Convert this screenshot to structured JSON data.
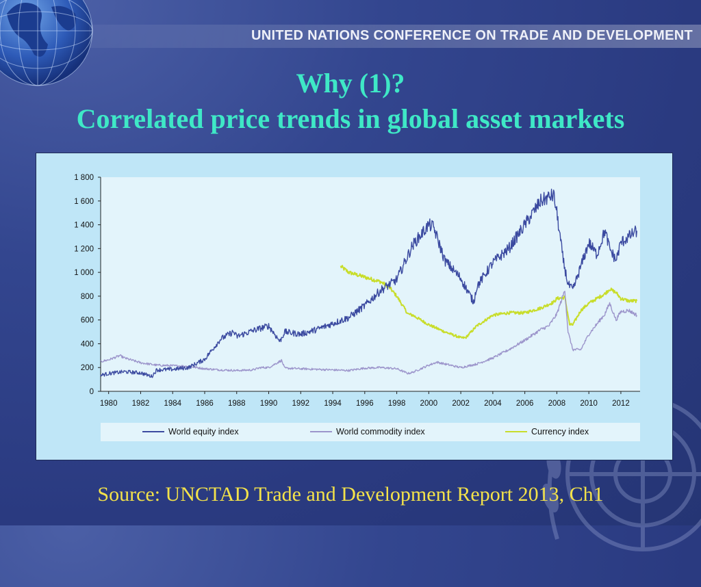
{
  "header": {
    "org_banner": "UNITED NATIONS CONFERENCE ON TRADE AND DEVELOPMENT",
    "title_line1": "Why (1)?",
    "title_line2": "Correlated price trends in global asset markets"
  },
  "footer": {
    "source": "Source: UNCTAD Trade and Development Report 2013, Ch1"
  },
  "colors": {
    "equity": "#3b4aa0",
    "commodity": "#9c95cb",
    "currency": "#c8dd2a",
    "title": "#3fe8c6",
    "source": "#f3e24a"
  },
  "chart_data": {
    "type": "line",
    "xlim": [
      1979.5,
      2013.2
    ],
    "ylim": [
      0,
      1800
    ],
    "x_ticks": [
      "1980",
      "1982",
      "1984",
      "1986",
      "1988",
      "1990",
      "1992",
      "1994",
      "1996",
      "1998",
      "2000",
      "2002",
      "2004",
      "2006",
      "2008",
      "2010",
      "2012"
    ],
    "y_ticks": [
      "0",
      "200",
      "400",
      "600",
      "800",
      "1 000",
      "1 200",
      "1 400",
      "1 600",
      "1 800"
    ],
    "legend_position": "bottom",
    "grid": false,
    "series": [
      {
        "name": "World equity index",
        "x": [
          1979.5,
          1980,
          1981,
          1982,
          1982.7,
          1983,
          1984,
          1985,
          1986,
          1987,
          1987.8,
          1988,
          1989,
          1990,
          1990.7,
          1991,
          1992,
          1993,
          1994,
          1995,
          1996,
          1997,
          1997.8,
          1998,
          1999,
          2000,
          2000.3,
          2001,
          2002,
          2002.8,
          2003,
          2004,
          2005,
          2006,
          2007,
          2007.8,
          2008,
          2008.4,
          2008.7,
          2009,
          2010,
          2010.5,
          2011,
          2011.3,
          2011.7,
          2012,
          2012.5,
          2013
        ],
        "y": [
          135,
          150,
          165,
          155,
          125,
          180,
          185,
          200,
          270,
          440,
          500,
          460,
          510,
          550,
          420,
          500,
          480,
          520,
          570,
          620,
          720,
          850,
          920,
          940,
          1230,
          1400,
          1380,
          1100,
          950,
          750,
          880,
          1080,
          1200,
          1400,
          1600,
          1650,
          1500,
          1100,
          900,
          850,
          1250,
          1150,
          1350,
          1200,
          1100,
          1250,
          1300,
          1350
        ]
      },
      {
        "name": "World commodity index",
        "x": [
          1979.5,
          1980,
          1980.7,
          1981,
          1982,
          1983,
          1984,
          1985,
          1986,
          1987,
          1988,
          1989,
          1989.5,
          1990,
          1990.8,
          1991,
          1992,
          1993,
          1994,
          1995,
          1996,
          1997,
          1998,
          1998.7,
          1999,
          2000,
          2000.5,
          2001,
          2002,
          2003,
          2004,
          2005,
          2006,
          2007,
          2007.5,
          2008,
          2008.5,
          2008.7,
          2009,
          2009.5,
          2010,
          2011,
          2011.3,
          2011.7,
          2012,
          2012.5,
          2013
        ],
        "y": [
          250,
          265,
          300,
          280,
          240,
          220,
          215,
          210,
          190,
          180,
          175,
          180,
          200,
          200,
          260,
          195,
          190,
          185,
          180,
          175,
          195,
          200,
          190,
          150,
          160,
          220,
          245,
          230,
          200,
          230,
          280,
          350,
          430,
          520,
          550,
          650,
          850,
          500,
          350,
          350,
          480,
          650,
          740,
          600,
          670,
          680,
          640
        ]
      },
      {
        "name": "Currency index",
        "x": [
          1994.5,
          1995,
          1996,
          1997,
          1997.5,
          1998,
          1998.7,
          1999,
          2000,
          2001,
          2002,
          2002.3,
          2003,
          2004,
          2005,
          2006,
          2007,
          2007.8,
          2008,
          2008.5,
          2008.8,
          2009,
          2009.5,
          2010,
          2011,
          2011.3,
          2011.7,
          2012,
          2012.5,
          2013
        ],
        "y": [
          1050,
          1000,
          960,
          920,
          880,
          800,
          650,
          640,
          560,
          500,
          450,
          450,
          550,
          640,
          660,
          660,
          700,
          750,
          780,
          790,
          560,
          560,
          680,
          740,
          820,
          860,
          830,
          780,
          760,
          760
        ]
      }
    ]
  }
}
